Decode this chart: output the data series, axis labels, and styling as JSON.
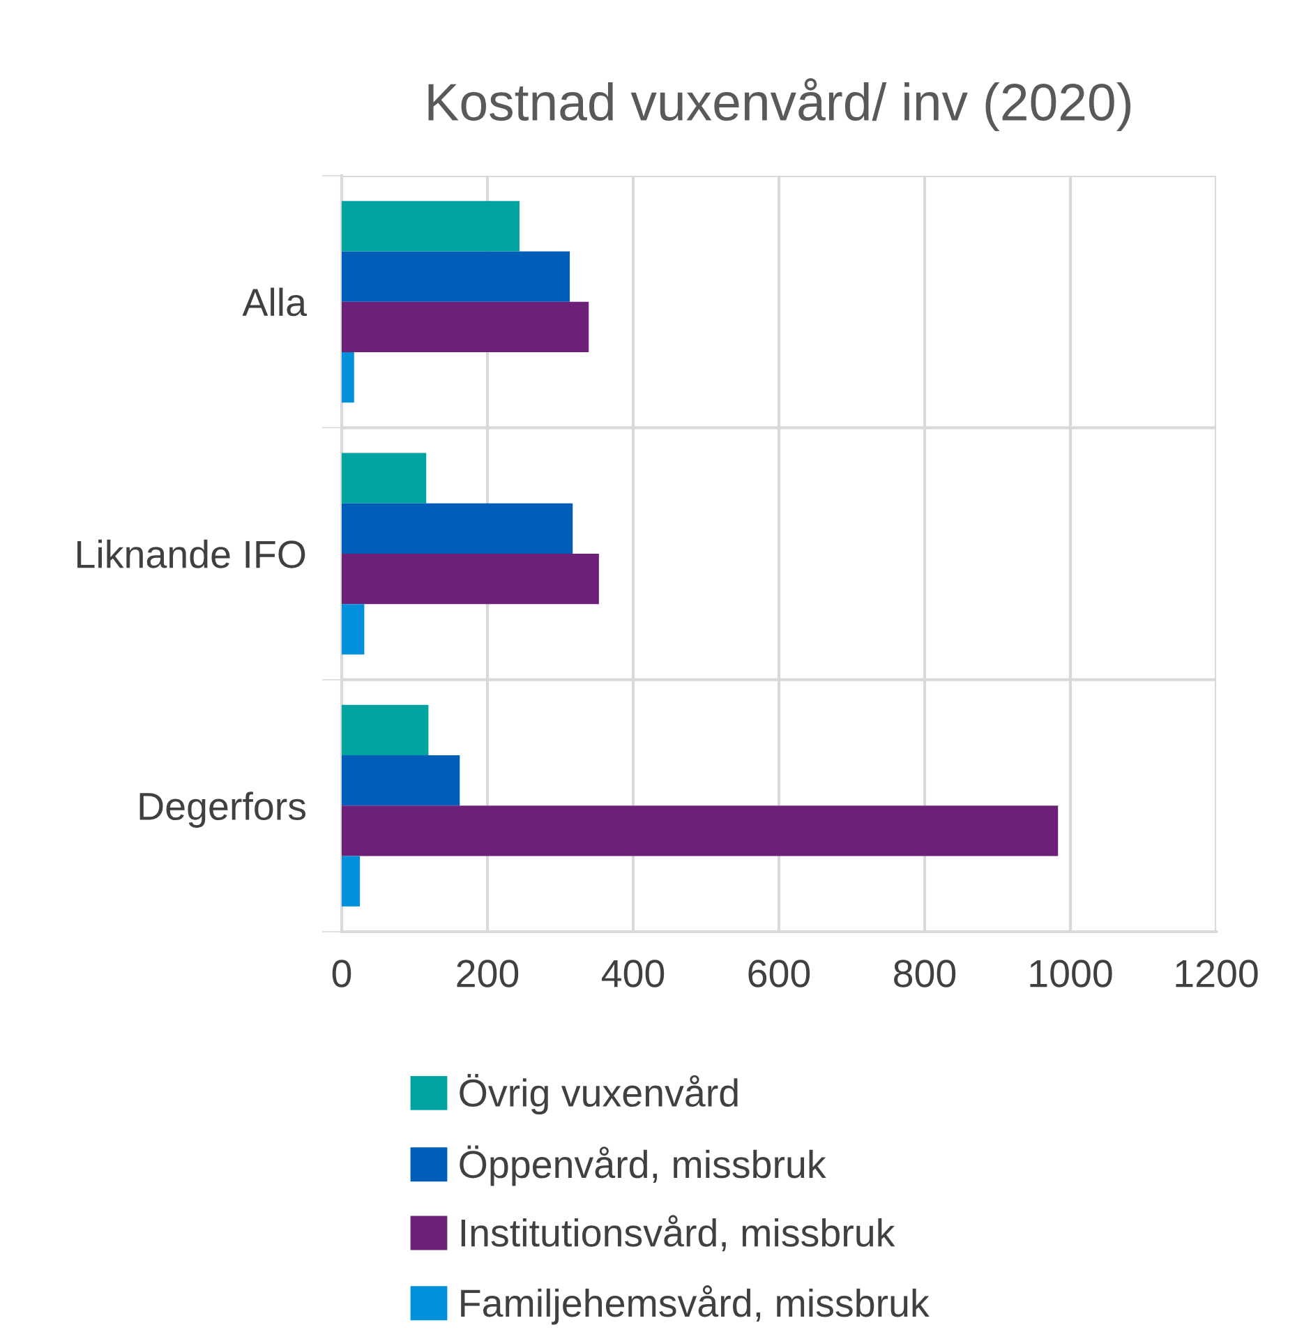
{
  "chart_data": {
    "type": "bar",
    "orientation": "horizontal",
    "title": "Kostnad vuxenvård/ inv (2020)",
    "categories": [
      "Alla",
      "Liknande IFO",
      "Degerfors"
    ],
    "series": [
      {
        "name": "Övrig vuxenvård",
        "color": "#00a3a0",
        "values": [
          244,
          116,
          119
        ]
      },
      {
        "name": "Öppenvård, missbruk",
        "color": "#005eb8",
        "values": [
          313,
          317,
          162
        ]
      },
      {
        "name": "Institutionsvård, missbruk",
        "color": "#6d2077",
        "values": [
          339,
          353,
          983
        ]
      },
      {
        "name": "Familjehemsvård, missbruk",
        "color": "#0091da",
        "values": [
          17,
          31,
          25
        ]
      }
    ],
    "xlim": [
      0,
      1200
    ],
    "xticks": [
      0,
      200,
      400,
      600,
      800,
      1000,
      1200
    ],
    "grid": true,
    "legend": "bottom"
  }
}
